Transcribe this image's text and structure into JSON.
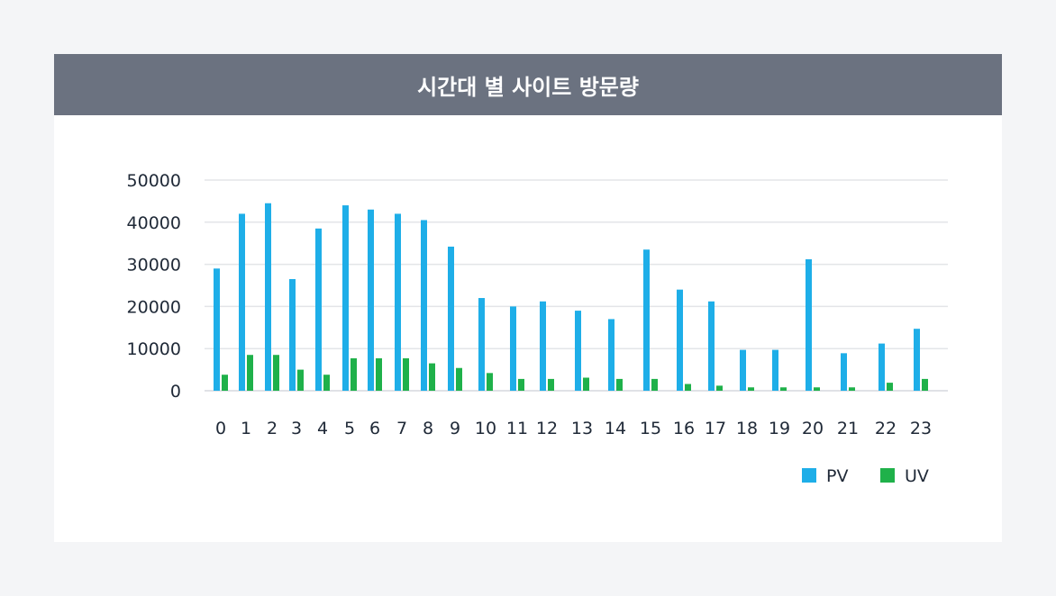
{
  "header": {
    "title": "시간대 별 사이트 방문량"
  },
  "chart_data": {
    "type": "bar",
    "title": "시간대 별 사이트 방문량",
    "categories": [
      "0",
      "1",
      "2",
      "3",
      "4",
      "5",
      "6",
      "7",
      "8",
      "9",
      "10",
      "11",
      "12",
      "13",
      "14",
      "15",
      "16",
      "17",
      "18",
      "19",
      "20",
      "21",
      "22",
      "23"
    ],
    "series": [
      {
        "name": "PV",
        "color": "#1eaee8",
        "values": [
          29000,
          42000,
          44500,
          26500,
          38500,
          44000,
          43000,
          42000,
          40500,
          34200,
          22000,
          20000,
          21200,
          19000,
          17000,
          33500,
          24000,
          21200,
          9700,
          9700,
          31200,
          8900,
          11200,
          14700
        ]
      },
      {
        "name": "UV",
        "color": "#1fb14a",
        "values": [
          3800,
          8500,
          8500,
          5000,
          3800,
          7700,
          7700,
          7700,
          6500,
          5400,
          4200,
          2800,
          2800,
          3100,
          2800,
          2800,
          1600,
          1200,
          800,
          800,
          800,
          800,
          1900,
          2800
        ]
      }
    ],
    "ylim": [
      0,
      50000
    ],
    "yticks": [
      "0",
      "10000",
      "20000",
      "30000",
      "40000",
      "50000"
    ],
    "xlabel": "",
    "ylabel": "",
    "grid": true,
    "legend": "bottom-right"
  }
}
